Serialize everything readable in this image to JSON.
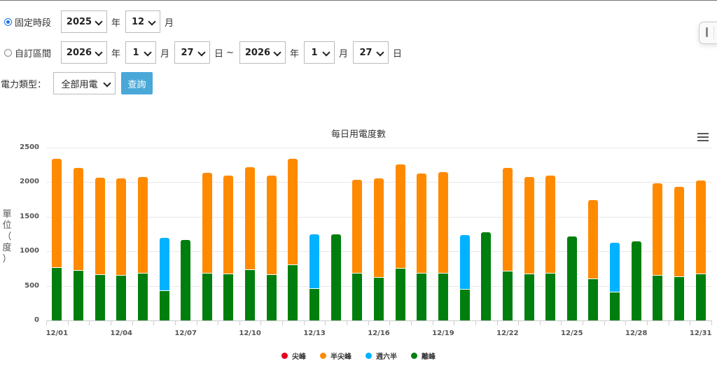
{
  "filters": {
    "fixed_period": {
      "label": "固定時段",
      "checked": true,
      "year": "2025",
      "year_unit": "年",
      "month": "12",
      "month_unit": "月"
    },
    "custom_range": {
      "label": "自訂區間",
      "checked": false,
      "start_year": "2026",
      "start_month": "1",
      "start_day": "27",
      "year_unit": "年",
      "month_unit": "月",
      "day_unit": "日",
      "range_separator": "~",
      "end_year": "2026",
      "end_month": "1",
      "end_day": "27"
    },
    "power_type": {
      "label": "電力類型：",
      "value": "全部用電"
    },
    "query_button": "查詢"
  },
  "colors": {
    "peak": "#e3001b",
    "semi_peak": "#ff8a00",
    "saturday_semi": "#00b2ff",
    "off_peak": "#007f0e",
    "query_button": "#4aa8d8"
  },
  "chart_data": {
    "type": "bar",
    "stacked": true,
    "title": "每日用電度數",
    "xlabel": "",
    "ylabel": "單位（度）",
    "ylim": [
      0,
      2500
    ],
    "yticks": [
      0,
      500,
      1000,
      1500,
      2000,
      2500
    ],
    "grid": true,
    "legend_position": "bottom",
    "categories": [
      "12/01",
      "12/02",
      "12/03",
      "12/04",
      "12/05",
      "12/06",
      "12/07",
      "12/08",
      "12/09",
      "12/10",
      "12/11",
      "12/12",
      "12/13",
      "12/14",
      "12/15",
      "12/16",
      "12/17",
      "12/18",
      "12/19",
      "12/20",
      "12/21",
      "12/22",
      "12/23",
      "12/24",
      "12/25",
      "12/26",
      "12/27",
      "12/28",
      "12/29",
      "12/30",
      "12/31"
    ],
    "xtick_labels": [
      "12/01",
      "12/04",
      "12/07",
      "12/10",
      "12/13",
      "12/16",
      "12/19",
      "12/22",
      "12/25",
      "12/28",
      "12/31"
    ],
    "series": [
      {
        "name": "尖峰",
        "color": "#e3001b",
        "values": [
          0,
          0,
          0,
          0,
          0,
          0,
          0,
          0,
          0,
          0,
          0,
          0,
          0,
          0,
          0,
          0,
          0,
          0,
          0,
          0,
          0,
          0,
          0,
          0,
          0,
          0,
          0,
          0,
          0,
          0,
          0
        ]
      },
      {
        "name": "半尖峰",
        "color": "#ff8a00",
        "values": [
          1580,
          1490,
          1410,
          1405,
          1395,
          0,
          0,
          1460,
          1430,
          1485,
          1440,
          1540,
          0,
          0,
          1355,
          1435,
          1505,
          1450,
          1465,
          0,
          0,
          1495,
          1405,
          1415,
          0,
          1140,
          0,
          0,
          1335,
          1305,
          1355
        ]
      },
      {
        "name": "週六半",
        "color": "#00b2ff",
        "values": [
          0,
          0,
          0,
          0,
          0,
          770,
          0,
          0,
          0,
          0,
          0,
          0,
          790,
          0,
          0,
          0,
          0,
          0,
          0,
          790,
          0,
          0,
          0,
          0,
          0,
          0,
          720,
          0,
          0,
          0,
          0
        ]
      },
      {
        "name": "離峰",
        "color": "#007f0e",
        "values": [
          760,
          720,
          660,
          650,
          680,
          425,
          1165,
          680,
          670,
          730,
          660,
          800,
          455,
          1245,
          680,
          620,
          750,
          680,
          680,
          445,
          1275,
          710,
          670,
          680,
          1215,
          600,
          405,
          1145,
          650,
          630,
          670
        ]
      }
    ]
  },
  "chart": {
    "menu_icon": "hamburger-menu-icon"
  }
}
